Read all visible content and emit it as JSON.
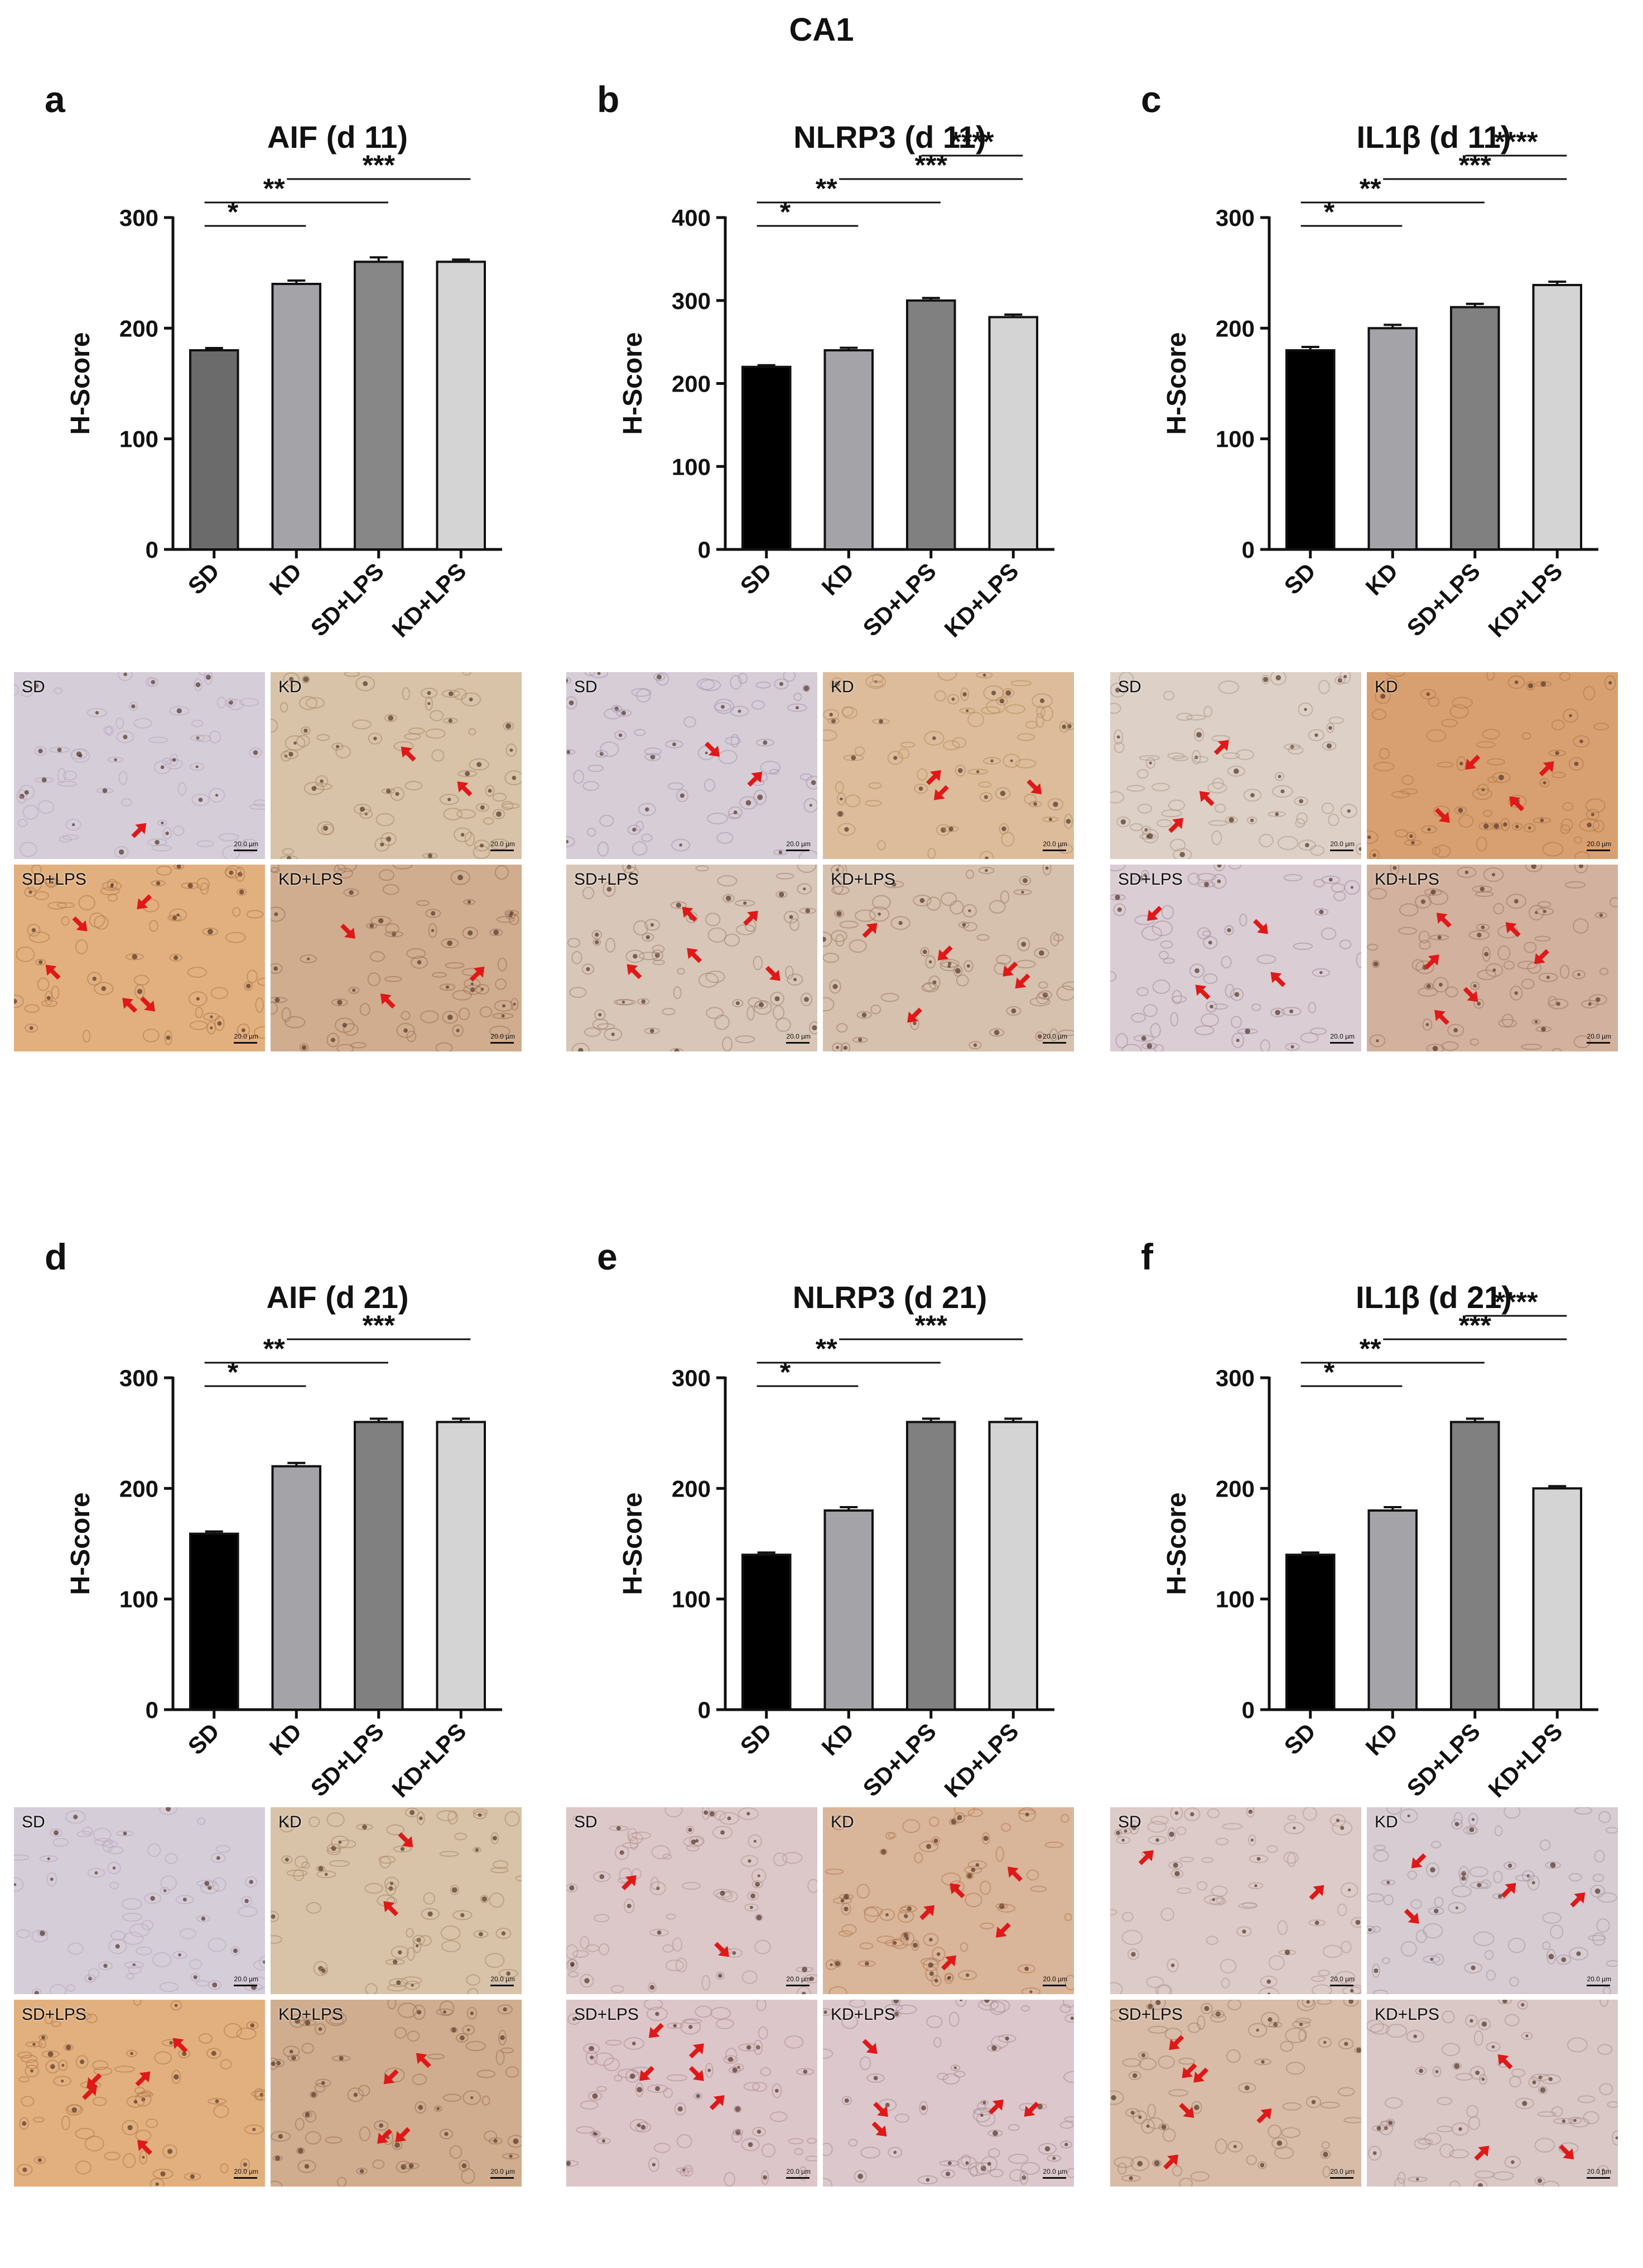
{
  "figure_title": "CA1",
  "colors": {
    "red_arrow": "#e01818",
    "bar_edge": "#111111"
  },
  "chart_data": [
    {
      "type": "bar",
      "letter": "a",
      "title": "AIF (d 11)",
      "ylabel": "H-Score",
      "categories": [
        "SD",
        "KD",
        "SD+LPS",
        "KD+LPS"
      ],
      "values": [
        180,
        240,
        260,
        260
      ],
      "errors": [
        2,
        3,
        4,
        2
      ],
      "ylim": [
        0,
        300
      ],
      "yticks": [
        0,
        100,
        200,
        300
      ],
      "bar_colors": [
        "#6b6b6b",
        "#a3a3a8",
        "#878787",
        "#d4d4d4"
      ],
      "significance": [
        {
          "from": 0,
          "to": 1,
          "label": "*"
        },
        {
          "from": 0,
          "to": 2,
          "label": "**"
        },
        {
          "from": 1,
          "to": 3,
          "label": "***"
        }
      ]
    },
    {
      "type": "bar",
      "letter": "b",
      "title": "NLRP3 (d 11)",
      "ylabel": "H-Score",
      "categories": [
        "SD",
        "KD",
        "SD+LPS",
        "KD+LPS"
      ],
      "values": [
        220,
        240,
        300,
        280
      ],
      "errors": [
        2,
        3,
        3,
        3
      ],
      "ylim": [
        0,
        400
      ],
      "yticks": [
        0,
        100,
        200,
        300,
        400
      ],
      "bar_colors": [
        "#000000",
        "#a3a3a8",
        "#808080",
        "#d4d4d4"
      ],
      "significance": [
        {
          "from": 0,
          "to": 1,
          "label": "*"
        },
        {
          "from": 0,
          "to": 2,
          "label": "**"
        },
        {
          "from": 1,
          "to": 3,
          "label": "***"
        },
        {
          "from": 2,
          "to": 3,
          "label": "****"
        }
      ]
    },
    {
      "type": "bar",
      "letter": "c",
      "title": "IL1β (d 11)",
      "ylabel": "H-Score",
      "categories": [
        "SD",
        "KD",
        "SD+LPS",
        "KD+LPS"
      ],
      "values": [
        180,
        200,
        219,
        239
      ],
      "errors": [
        3,
        3,
        3,
        3
      ],
      "ylim": [
        0,
        300
      ],
      "yticks": [
        0,
        100,
        200,
        300
      ],
      "bar_colors": [
        "#000000",
        "#a3a3a8",
        "#808080",
        "#d4d4d4"
      ],
      "significance": [
        {
          "from": 0,
          "to": 1,
          "label": "*"
        },
        {
          "from": 0,
          "to": 2,
          "label": "**"
        },
        {
          "from": 1,
          "to": 3,
          "label": "***"
        },
        {
          "from": 2,
          "to": 3,
          "label": "****"
        }
      ]
    },
    {
      "type": "bar",
      "letter": "d",
      "title": "AIF (d 21)",
      "ylabel": "H-Score",
      "categories": [
        "SD",
        "KD",
        "SD+LPS",
        "KD+LPS"
      ],
      "values": [
        159,
        220,
        260,
        260
      ],
      "errors": [
        2,
        3,
        3,
        3
      ],
      "ylim": [
        0,
        300
      ],
      "yticks": [
        0,
        100,
        200,
        300
      ],
      "bar_colors": [
        "#000000",
        "#a3a3a8",
        "#808080",
        "#d4d4d4"
      ],
      "significance": [
        {
          "from": 0,
          "to": 1,
          "label": "*"
        },
        {
          "from": 0,
          "to": 2,
          "label": "**"
        },
        {
          "from": 1,
          "to": 3,
          "label": "***"
        }
      ]
    },
    {
      "type": "bar",
      "letter": "e",
      "title": "NLRP3 (d 21)",
      "ylabel": "H-Score",
      "categories": [
        "SD",
        "KD",
        "SD+LPS",
        "KD+LPS"
      ],
      "values": [
        140,
        180,
        260,
        260
      ],
      "errors": [
        2,
        3,
        3,
        3
      ],
      "ylim": [
        0,
        300
      ],
      "yticks": [
        0,
        100,
        200,
        300
      ],
      "bar_colors": [
        "#000000",
        "#a3a3a8",
        "#808080",
        "#d4d4d4"
      ],
      "significance": [
        {
          "from": 0,
          "to": 1,
          "label": "*"
        },
        {
          "from": 0,
          "to": 2,
          "label": "**"
        },
        {
          "from": 1,
          "to": 3,
          "label": "***"
        }
      ]
    },
    {
      "type": "bar",
      "letter": "f",
      "title": "IL1β (d 21)",
      "ylabel": "H-Score",
      "categories": [
        "SD",
        "KD",
        "SD+LPS",
        "KD+LPS"
      ],
      "values": [
        140,
        180,
        260,
        200
      ],
      "errors": [
        2,
        3,
        3,
        2
      ],
      "ylim": [
        0,
        300
      ],
      "yticks": [
        0,
        100,
        200,
        300
      ],
      "bar_colors": [
        "#000000",
        "#a3a3a8",
        "#808080",
        "#d4d4d4"
      ],
      "significance": [
        {
          "from": 0,
          "to": 1,
          "label": "*"
        },
        {
          "from": 0,
          "to": 2,
          "label": "**"
        },
        {
          "from": 1,
          "to": 3,
          "label": "***"
        },
        {
          "from": 2,
          "to": 3,
          "label": "****"
        }
      ]
    }
  ],
  "micrographs": [
    {
      "panel": "a",
      "tiles": [
        {
          "label": "SD",
          "scale": "20.0 µm",
          "bg": "#d5cdd8",
          "stain": "#b8a8c0",
          "arrows": 1
        },
        {
          "label": "KD",
          "scale": "20.0 µm",
          "bg": "#d8c2a8",
          "stain": "#a88866",
          "arrows": 2
        },
        {
          "label": "SD+LPS",
          "scale": "20.0 µm",
          "bg": "#e2b07e",
          "stain": "#b0764a",
          "arrows": 5
        },
        {
          "label": "KD+LPS",
          "scale": "20.0 µm",
          "bg": "#d0ad8e",
          "stain": "#9a7058",
          "arrows": 3
        }
      ]
    },
    {
      "panel": "b",
      "tiles": [
        {
          "label": "SD",
          "scale": "20.0 µm",
          "bg": "#d6cdd6",
          "stain": "#a896b0",
          "arrows": 2
        },
        {
          "label": "KD",
          "scale": "20.0 µm",
          "bg": "#dcbc9a",
          "stain": "#b48a60",
          "arrows": 3
        },
        {
          "label": "SD+LPS",
          "scale": "20.0 µm",
          "bg": "#d8c6b8",
          "stain": "#a08270",
          "arrows": 5
        },
        {
          "label": "KD+LPS",
          "scale": "20.0 µm",
          "bg": "#d6c0ae",
          "stain": "#9c7c66",
          "arrows": 5
        }
      ]
    },
    {
      "panel": "c",
      "tiles": [
        {
          "label": "SD",
          "scale": "20.0 µm",
          "bg": "#ddd0c6",
          "stain": "#ac9688",
          "arrows": 3
        },
        {
          "label": "KD",
          "scale": "20.0 µm",
          "bg": "#d8a070",
          "stain": "#b07446",
          "arrows": 4
        },
        {
          "label": "SD+LPS",
          "scale": "20.0 µm",
          "bg": "#dacdd3",
          "stain": "#a48c9c",
          "arrows": 4
        },
        {
          "label": "KD+LPS",
          "scale": "20.0 µm",
          "bg": "#d2b29e",
          "stain": "#9a7660",
          "arrows": 6
        }
      ]
    },
    {
      "panel": "d",
      "tiles": [
        {
          "label": "SD",
          "scale": "20.0 µm",
          "bg": "#d5cdd8",
          "stain": "#b8a8c0",
          "arrows": 0
        },
        {
          "label": "KD",
          "scale": "20.0 µm",
          "bg": "#d8c2a8",
          "stain": "#a88866",
          "arrows": 2
        },
        {
          "label": "SD+LPS",
          "scale": "20.0 µm",
          "bg": "#e2b07e",
          "stain": "#b0764a",
          "arrows": 5
        },
        {
          "label": "KD+LPS",
          "scale": "20.0 µm",
          "bg": "#d0ad8e",
          "stain": "#9a7058",
          "arrows": 4
        }
      ]
    },
    {
      "panel": "e",
      "tiles": [
        {
          "label": "SD",
          "scale": "20.0 µm",
          "bg": "#dcc8c8",
          "stain": "#b49494",
          "arrows": 2
        },
        {
          "label": "KD",
          "scale": "20.0 µm",
          "bg": "#d9b59a",
          "stain": "#b07850",
          "arrows": 5
        },
        {
          "label": "SD+LPS",
          "scale": "20.0 µm",
          "bg": "#dcc6ca",
          "stain": "#b08c92",
          "arrows": 5
        },
        {
          "label": "KD+LPS",
          "scale": "20.0 µm",
          "bg": "#dcc8cc",
          "stain": "#a88c92",
          "arrows": 5
        }
      ]
    },
    {
      "panel": "f",
      "tiles": [
        {
          "label": "SD",
          "scale": "20.0 µm",
          "bg": "#dccbc8",
          "stain": "#b09894",
          "arrows": 2
        },
        {
          "label": "KD",
          "scale": "20.0 µm",
          "bg": "#d6ccd2",
          "stain": "#a8969e",
          "arrows": 4
        },
        {
          "label": "SD+LPS",
          "scale": "20.0 µm",
          "bg": "#d8bca8",
          "stain": "#a0806a",
          "arrows": 6
        },
        {
          "label": "KD+LPS",
          "scale": "20.0 µm",
          "bg": "#dac8c6",
          "stain": "#a89090",
          "arrows": 3
        }
      ]
    }
  ]
}
